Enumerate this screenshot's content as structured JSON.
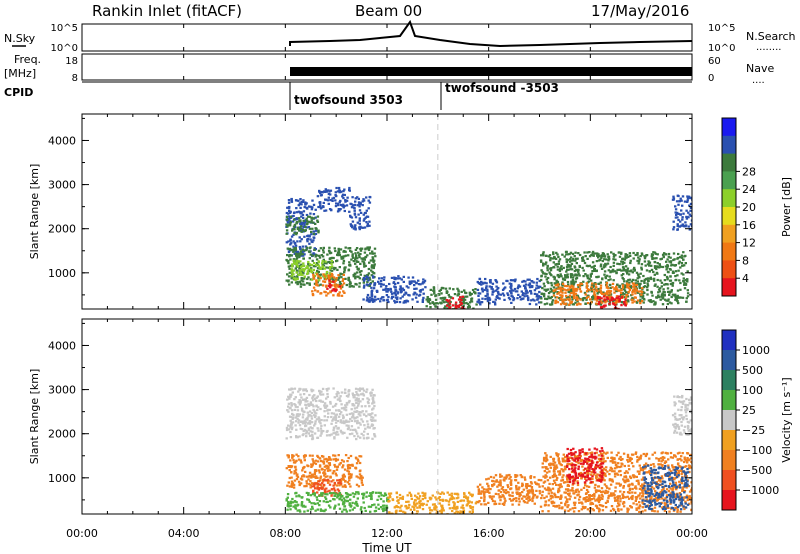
{
  "header": {
    "station": "Rankin Inlet (fitACF)",
    "beam": "Beam 00",
    "date": "17/May/2016"
  },
  "panels": {
    "nsky": {
      "left_label": "N.Sky",
      "right_label": "N.Search",
      "left_ticks": [
        "10^5",
        "10^0"
      ],
      "right_ticks": [
        "10^5",
        "10^0"
      ],
      "right_dots": "........"
    },
    "freq": {
      "left_label_1": "Freq.",
      "left_label_2": "[MHz]",
      "right_label": "Nave",
      "left_ticks": [
        "18",
        "8"
      ],
      "right_ticks": [
        "60",
        "0"
      ],
      "right_dots": "...."
    },
    "cpid": {
      "label": "CPID",
      "programs": [
        {
          "name": "twofsound 3503",
          "start_hour": 8.0
        },
        {
          "name": "twofsound -3503",
          "start_hour": 14.0
        }
      ]
    }
  },
  "x_axis": {
    "label": "Time UT",
    "ticks": [
      "00:00",
      "04:00",
      "08:00",
      "12:00",
      "16:00",
      "20:00",
      "00:00"
    ],
    "range_hours": [
      0,
      24
    ]
  },
  "chart_data": [
    {
      "type": "heatmap",
      "name": "power",
      "ylabel": "Slant Range [km]",
      "yticks": [
        "1000",
        "2000",
        "3000",
        "4000"
      ],
      "ylim": [
        180,
        4600
      ],
      "xlim_hours": [
        0,
        24
      ],
      "colorbar": {
        "label": "Power [dB]",
        "ticks": [
          "4",
          "8",
          "12",
          "16",
          "20",
          "24",
          "28"
        ],
        "colors": [
          "#1a1af0",
          "#2a50b0",
          "#3c7a3c",
          "#4aa050",
          "#8ccf2a",
          "#e6dc1e",
          "#f0a020",
          "#f07814",
          "#ee5014",
          "#e6141e"
        ]
      },
      "blobs": [
        {
          "x0": 8.0,
          "x1": 9.2,
          "y0": 1400,
          "y1": 2700,
          "color": "#2a50b0"
        },
        {
          "x0": 8.0,
          "x1": 9.3,
          "y0": 1900,
          "y1": 2300,
          "color": "#3c7a3c"
        },
        {
          "x0": 9.2,
          "x1": 10.5,
          "y0": 2400,
          "y1": 2950,
          "color": "#2a50b0"
        },
        {
          "x0": 10.5,
          "x1": 11.3,
          "y0": 2000,
          "y1": 2750,
          "color": "#2a50b0"
        },
        {
          "x0": 8.0,
          "x1": 11.5,
          "y0": 700,
          "y1": 1600,
          "color": "#3c7a3c"
        },
        {
          "x0": 8.2,
          "x1": 9.8,
          "y0": 850,
          "y1": 1300,
          "color": "#8ccf2a"
        },
        {
          "x0": 9.0,
          "x1": 10.3,
          "y0": 500,
          "y1": 1000,
          "color": "#f07814"
        },
        {
          "x0": 9.6,
          "x1": 10.1,
          "y0": 600,
          "y1": 850,
          "color": "#e6141e"
        },
        {
          "x0": 11.0,
          "x1": 13.5,
          "y0": 350,
          "y1": 950,
          "color": "#2a50b0"
        },
        {
          "x0": 13.5,
          "x1": 15.5,
          "y0": 200,
          "y1": 700,
          "color": "#3c7a3c"
        },
        {
          "x0": 14.3,
          "x1": 15.0,
          "y0": 200,
          "y1": 500,
          "color": "#e6141e"
        },
        {
          "x0": 15.5,
          "x1": 18.0,
          "y0": 300,
          "y1": 900,
          "color": "#2a50b0"
        },
        {
          "x0": 18.0,
          "x1": 23.8,
          "y0": 300,
          "y1": 1500,
          "color": "#3c7a3c"
        },
        {
          "x0": 18.5,
          "x1": 22.0,
          "y0": 300,
          "y1": 800,
          "color": "#f07814"
        },
        {
          "x0": 20.2,
          "x1": 21.4,
          "y0": 200,
          "y1": 500,
          "color": "#e6141e"
        },
        {
          "x0": 23.2,
          "x1": 24.0,
          "y0": 2000,
          "y1": 2800,
          "color": "#2a50b0"
        }
      ]
    },
    {
      "type": "heatmap",
      "name": "velocity",
      "ylabel": "Slant Range [km]",
      "yticks": [
        "1000",
        "2000",
        "3000",
        "4000"
      ],
      "ylim": [
        180,
        4600
      ],
      "xlim_hours": [
        0,
        24
      ],
      "colorbar": {
        "label": "Velocity [m s⁻¹]",
        "ticks": [
          "1000",
          "500",
          "100",
          "25",
          "−25",
          "−100",
          "−500",
          "−1000"
        ],
        "colors": [
          "#2030c0",
          "#2c5aa0",
          "#2c8060",
          "#50b040",
          "#c8c8c8",
          "#f0a020",
          "#f08020",
          "#f05020",
          "#e6141e"
        ]
      },
      "blobs": [
        {
          "x0": 8.0,
          "x1": 11.5,
          "y0": 1900,
          "y1": 3050,
          "color": "#c8c8c8"
        },
        {
          "x0": 8.0,
          "x1": 11.0,
          "y0": 800,
          "y1": 1550,
          "color": "#f08020"
        },
        {
          "x0": 9.0,
          "x1": 10.2,
          "y0": 600,
          "y1": 1000,
          "color": "#f05020"
        },
        {
          "x0": 8.0,
          "x1": 12.0,
          "y0": 250,
          "y1": 700,
          "color": "#50b040"
        },
        {
          "x0": 12.0,
          "x1": 15.5,
          "y0": 200,
          "y1": 700,
          "color": "#f0a020"
        },
        {
          "x0": 15.5,
          "x1": 18.0,
          "y0": 400,
          "y1": 1100,
          "color": "#f08020"
        },
        {
          "x0": 18.0,
          "x1": 24.0,
          "y0": 250,
          "y1": 1600,
          "color": "#f08020"
        },
        {
          "x0": 19.0,
          "x1": 20.5,
          "y0": 900,
          "y1": 1700,
          "color": "#e6141e"
        },
        {
          "x0": 22.0,
          "x1": 23.8,
          "y0": 300,
          "y1": 1300,
          "color": "#2c5aa0"
        },
        {
          "x0": 23.2,
          "x1": 24.0,
          "y0": 2000,
          "y1": 2900,
          "color": "#c8c8c8"
        }
      ]
    }
  ]
}
